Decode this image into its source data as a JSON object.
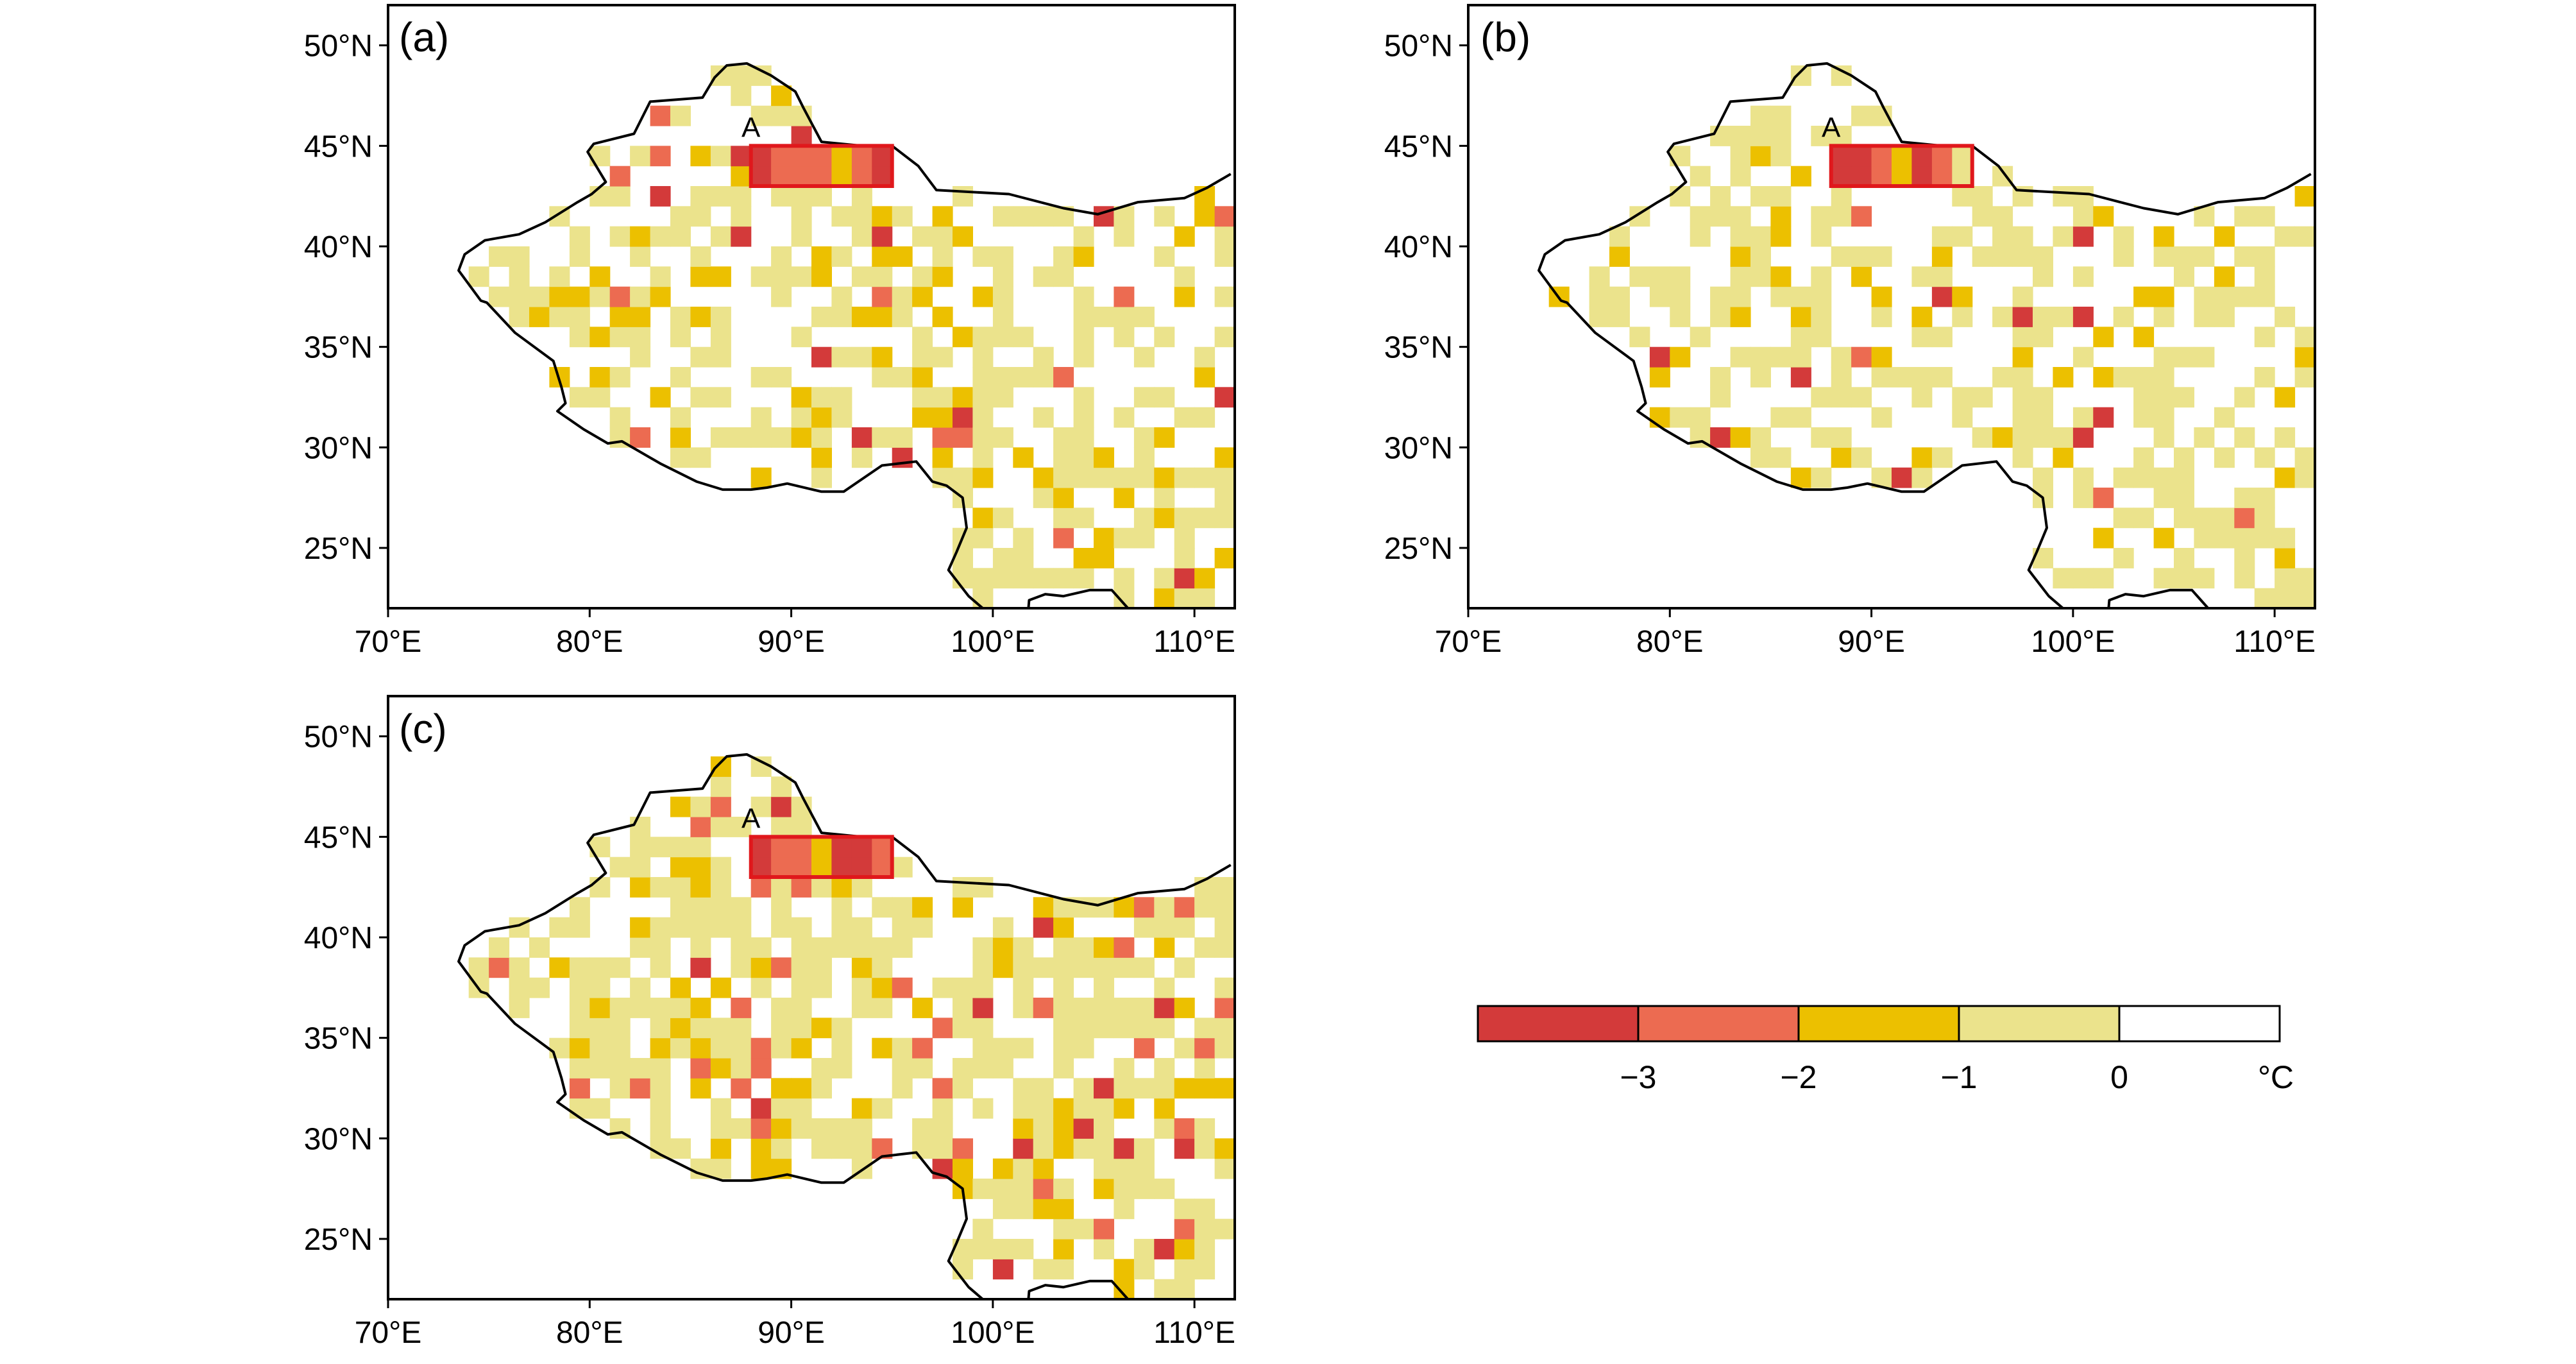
{
  "map": {
    "extent": {
      "lon_min": 70,
      "lon_max": 112,
      "lat_min": 22,
      "lat_max": 52
    },
    "lon_ticks": [
      {
        "value": 70,
        "label": "70°E"
      },
      {
        "value": 80,
        "label": "80°E"
      },
      {
        "value": 90,
        "label": "90°E"
      },
      {
        "value": 100,
        "label": "100°E"
      },
      {
        "value": 110,
        "label": "110°E"
      }
    ],
    "lat_ticks": [
      {
        "value": 25,
        "label": "25°N"
      },
      {
        "value": 30,
        "label": "30°N"
      },
      {
        "value": 35,
        "label": "35°N"
      },
      {
        "value": 40,
        "label": "40°N"
      },
      {
        "value": 45,
        "label": "45°N"
      },
      {
        "value": 50,
        "label": "50°N"
      }
    ],
    "region_box": {
      "label": "A",
      "lon_min": 88,
      "lon_max": 95,
      "lat_min": 43,
      "lat_max": 45
    }
  },
  "panels": [
    {
      "id": "a",
      "label": "(a)"
    },
    {
      "id": "b",
      "label": "(b)"
    },
    {
      "id": "c",
      "label": "(c)"
    }
  ],
  "colorbar": {
    "unit": "°C",
    "classes": [
      {
        "range": "< -3",
        "color": "#d33a3a"
      },
      {
        "range": "-3 to -2",
        "color": "#ec6b51"
      },
      {
        "range": "-2 to -1",
        "color": "#ecc000"
      },
      {
        "range": "-1 to 0",
        "color": "#ebe38c"
      },
      {
        "range": "> 0",
        "color": "#ffffff"
      }
    ],
    "tick_labels": [
      "−3",
      "−2",
      "−1",
      "0"
    ]
  },
  "colors": {
    "border": "#000000",
    "region_box": "#e0181c"
  }
}
